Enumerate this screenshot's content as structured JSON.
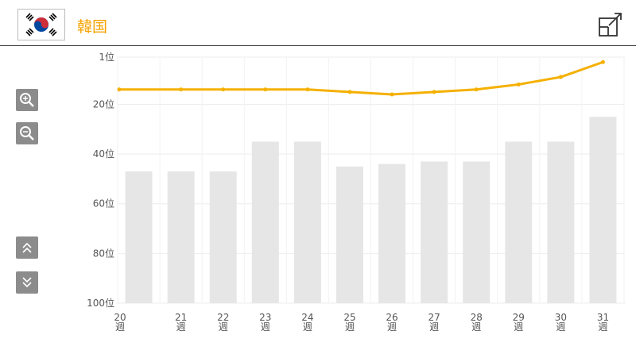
{
  "header": {
    "country": "韓国",
    "icons": {
      "flag": "south-korea-flag-icon",
      "share": "external-link-icon"
    }
  },
  "controls": {
    "zoom_in": "zoom-in-icon",
    "zoom_out": "zoom-out-icon",
    "scroll_up": "double-chevron-up-icon",
    "scroll_down": "double-chevron-down-icon"
  },
  "colors": {
    "line": "#f5b000",
    "bar": "#e6e6e6",
    "accent": "#f5a300"
  },
  "chart_data": {
    "type": "bar",
    "categories": [
      "20",
      "21",
      "22",
      "23",
      "24",
      "25",
      "26",
      "27",
      "28",
      "29",
      "30",
      "31"
    ],
    "week_suffix": "週",
    "y_ticks": [
      1,
      20,
      40,
      60,
      80,
      100
    ],
    "y_tick_labels": [
      "1位",
      "20位",
      "40位",
      "60位",
      "80位",
      "100位"
    ],
    "ylim": [
      1,
      100
    ],
    "y_inverted": true,
    "series": [
      {
        "type": "bar",
        "values": [
          47,
          47,
          47,
          35,
          35,
          45,
          44,
          43,
          43,
          35,
          35,
          25
        ]
      },
      {
        "type": "line",
        "values": [
          14,
          14,
          14,
          14,
          14,
          15,
          16,
          15,
          14,
          12,
          9,
          3
        ]
      }
    ],
    "grid": true,
    "legend": "none",
    "title": "",
    "xlabel": "",
    "ylabel": ""
  }
}
